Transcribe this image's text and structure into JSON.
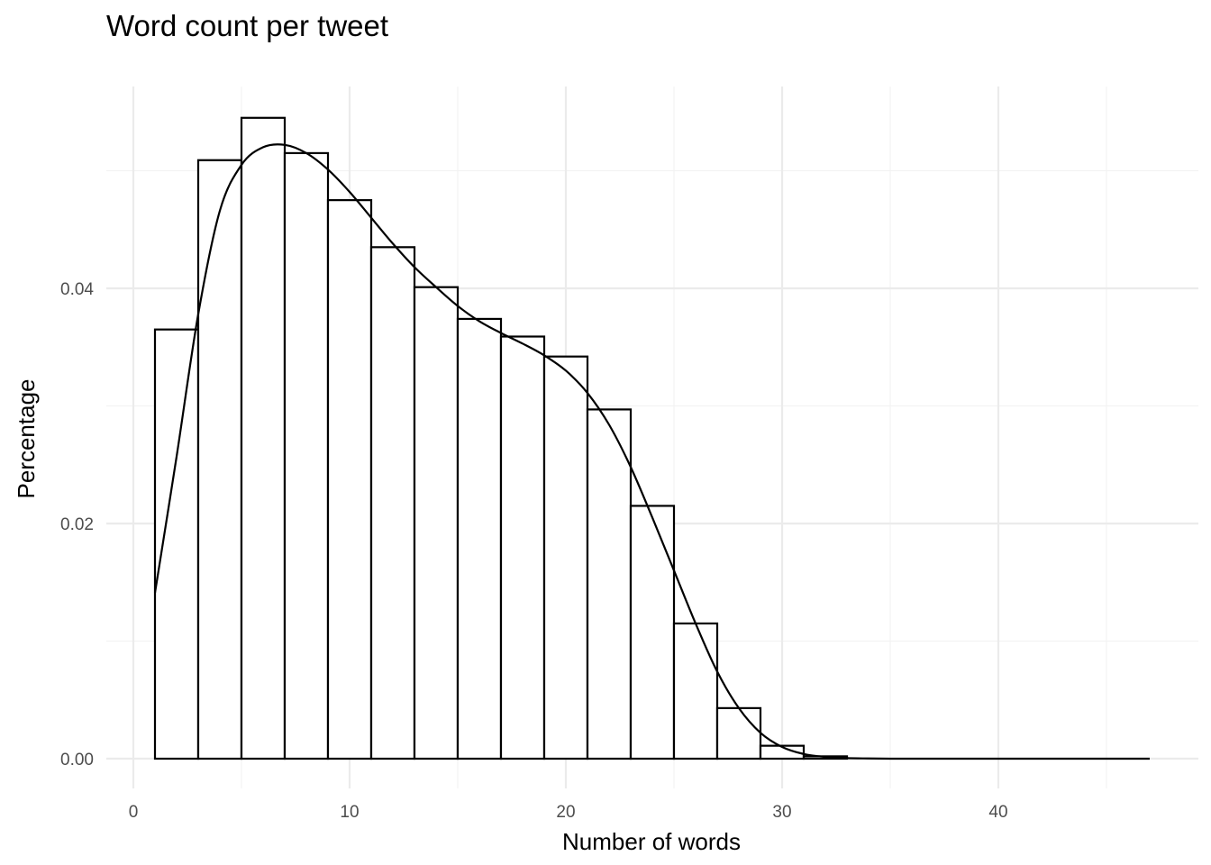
{
  "chart_data": {
    "type": "histogram",
    "title": "Word count per tweet",
    "xlabel": "Number of words",
    "ylabel": "Percentage",
    "x_ticks": [
      0,
      10,
      20,
      30,
      40
    ],
    "y_ticks": [
      0.0,
      0.02,
      0.04
    ],
    "y_tick_labels": [
      "0.00",
      "0.02",
      "0.04"
    ],
    "x_tick_labels": [
      "0",
      "10",
      "20",
      "30",
      "40"
    ],
    "xlim": [
      -1,
      49
    ],
    "ylim": [
      -0.002,
      0.057
    ],
    "grid": true,
    "legend": "none",
    "bin_width": 2,
    "bins": [
      {
        "x0": 1,
        "x1": 3,
        "value": 0.0365
      },
      {
        "x0": 3,
        "x1": 5,
        "value": 0.0509
      },
      {
        "x0": 5,
        "x1": 7,
        "value": 0.0545
      },
      {
        "x0": 7,
        "x1": 9,
        "value": 0.0515
      },
      {
        "x0": 9,
        "x1": 11,
        "value": 0.0475
      },
      {
        "x0": 11,
        "x1": 13,
        "value": 0.0435
      },
      {
        "x0": 13,
        "x1": 15,
        "value": 0.0401
      },
      {
        "x0": 15,
        "x1": 17,
        "value": 0.0374
      },
      {
        "x0": 17,
        "x1": 19,
        "value": 0.0359
      },
      {
        "x0": 19,
        "x1": 21,
        "value": 0.0342
      },
      {
        "x0": 21,
        "x1": 23,
        "value": 0.0297
      },
      {
        "x0": 23,
        "x1": 25,
        "value": 0.0215
      },
      {
        "x0": 25,
        "x1": 27,
        "value": 0.0115
      },
      {
        "x0": 27,
        "x1": 29,
        "value": 0.0043
      },
      {
        "x0": 29,
        "x1": 31,
        "value": 0.0011
      },
      {
        "x0": 31,
        "x1": 33,
        "value": 0.0002
      },
      {
        "x0": 33,
        "x1": 35,
        "value": 0.0
      },
      {
        "x0": 35,
        "x1": 37,
        "value": 0.0
      },
      {
        "x0": 37,
        "x1": 39,
        "value": 0.0
      },
      {
        "x0": 39,
        "x1": 41,
        "value": 0.0
      },
      {
        "x0": 41,
        "x1": 43,
        "value": 0.0
      },
      {
        "x0": 43,
        "x1": 45,
        "value": 0.0
      },
      {
        "x0": 45,
        "x1": 47,
        "value": 0.0
      }
    ],
    "density_curve": {
      "x": [
        1,
        2,
        3,
        4,
        5,
        6,
        7,
        8,
        9,
        10,
        11,
        12,
        13,
        14,
        15,
        16,
        17,
        18,
        19,
        20,
        21,
        22,
        23,
        24,
        25,
        26,
        27,
        28,
        29,
        30,
        31,
        32,
        33,
        34,
        35,
        36,
        37,
        38,
        40,
        42,
        44,
        47
      ],
      "y": [
        0.0141,
        0.0257,
        0.0378,
        0.0466,
        0.0505,
        0.052,
        0.0522,
        0.0515,
        0.0501,
        0.0482,
        0.046,
        0.0438,
        0.0418,
        0.0401,
        0.0385,
        0.0372,
        0.0362,
        0.0353,
        0.0343,
        0.033,
        0.0311,
        0.0284,
        0.0248,
        0.0205,
        0.016,
        0.0115,
        0.0074,
        0.0043,
        0.0022,
        0.001,
        0.0004,
        0.00015,
        5e-05,
        2e-05,
        0.0,
        0.0,
        0.0,
        0.0,
        0.0,
        0.0,
        0.0,
        0.0
      ]
    }
  }
}
